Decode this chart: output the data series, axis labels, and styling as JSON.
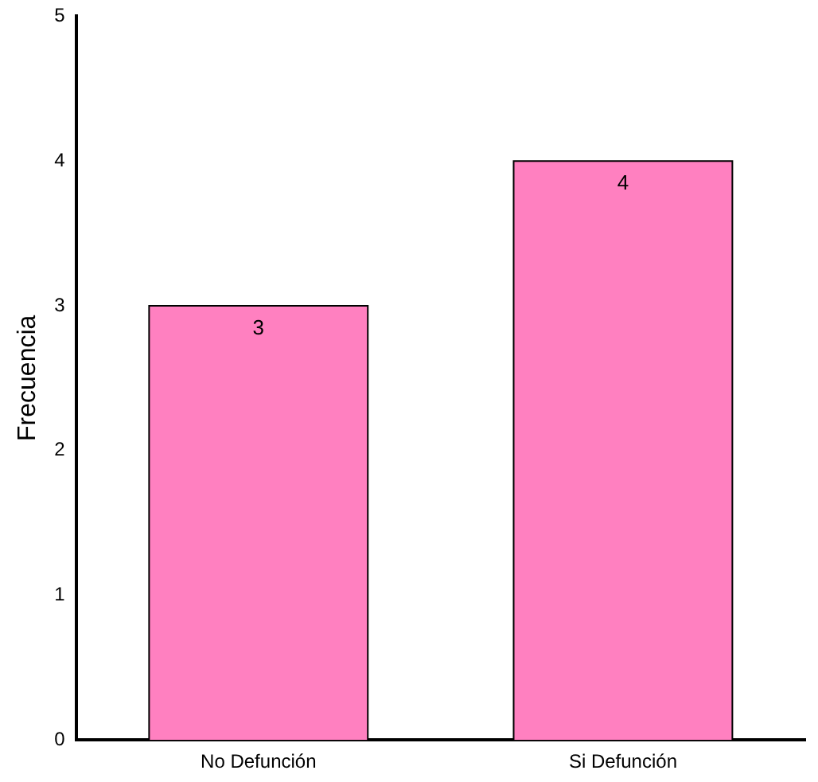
{
  "chart_data": {
    "type": "bar",
    "ylabel": "Frecuencia",
    "categories": [
      "No Defunción",
      "Si Defunción"
    ],
    "values": [
      3,
      4
    ],
    "color": "#ff80c0",
    "ylim": [
      0,
      5
    ],
    "yticks": [
      0,
      1,
      2,
      3,
      4,
      5
    ],
    "grid": false,
    "legend": false,
    "data_labels": true
  }
}
